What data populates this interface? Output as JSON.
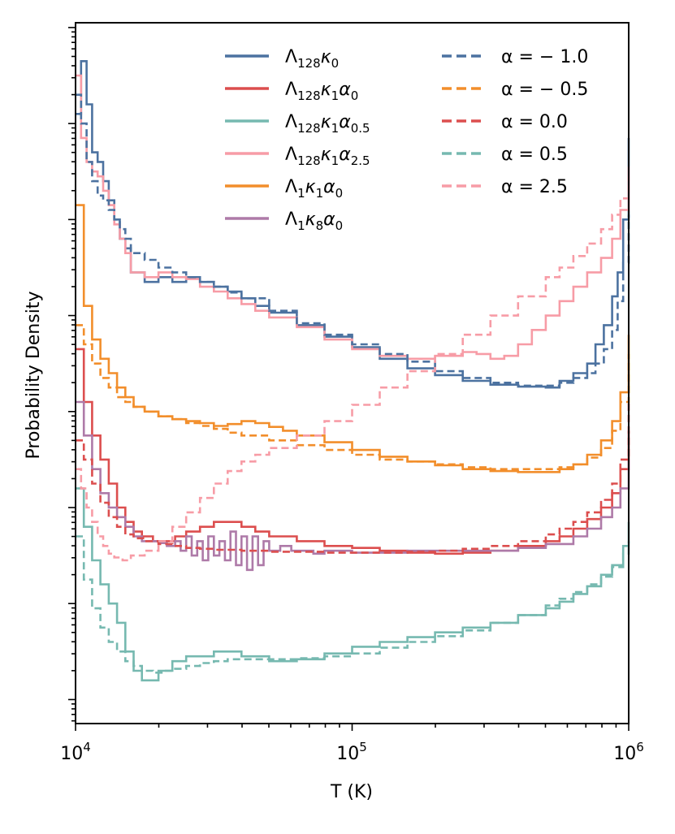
{
  "chart_data": {
    "type": "line",
    "xlabel": "T (K)",
    "ylabel": "Probability Density",
    "xscale": "log",
    "xlim": [
      10000,
      1000000
    ],
    "yscale": "log",
    "ylim": [
      -7.25,
      0.05
    ],
    "x_tick_labels": [
      {
        "value": 10000,
        "base": "10",
        "exp": "4"
      },
      {
        "value": 100000,
        "base": "10",
        "exp": "5"
      },
      {
        "value": 1000000,
        "base": "10",
        "exp": "6"
      }
    ],
    "legend_left": [
      {
        "name": "Λ",
        "sub1": "128",
        "mid": "κ",
        "sub2": "0",
        "mid2": "",
        "sub3": "",
        "color": "#4C72A0",
        "dashed": false
      },
      {
        "name": "Λ",
        "sub1": "128",
        "mid": "κ",
        "sub2": "1",
        "mid2": "α",
        "sub3": "0",
        "color": "#DC4E4E",
        "dashed": false
      },
      {
        "name": "Λ",
        "sub1": "128",
        "mid": "κ",
        "sub2": "1",
        "mid2": "α",
        "sub3": "0.5",
        "color": "#76B9B0",
        "dashed": false
      },
      {
        "name": "Λ",
        "sub1": "128",
        "mid": "κ",
        "sub2": "1",
        "mid2": "α",
        "sub3": "2.5",
        "color": "#F79CA6",
        "dashed": false
      },
      {
        "name": "Λ",
        "sub1": "1",
        "mid": "κ",
        "sub2": "1",
        "mid2": "α",
        "sub3": "0",
        "color": "#F28E2B",
        "dashed": false
      },
      {
        "name": "Λ",
        "sub1": "1",
        "mid": "κ",
        "sub2": "8",
        "mid2": "α",
        "sub3": "0",
        "color": "#AE7AA8",
        "dashed": false
      }
    ],
    "legend_right": [
      {
        "label": "α = − 1.0",
        "color": "#4C72A0",
        "dashed": true
      },
      {
        "label": "α = − 0.5",
        "color": "#F28E2B",
        "dashed": true
      },
      {
        "label": "α = 0.0",
        "color": "#DC4E4E",
        "dashed": true
      },
      {
        "label": "α = 0.5",
        "color": "#76B9B0",
        "dashed": true
      },
      {
        "label": "α = 2.5",
        "color": "#F79CA6",
        "dashed": true
      }
    ],
    "series": [
      {
        "name": "Λ128κ0",
        "color": "#4C72A0",
        "dashed": false,
        "step": true,
        "logT": [
          4.0,
          4.02,
          4.04,
          4.06,
          4.08,
          4.1,
          4.12,
          4.14,
          4.16,
          4.18,
          4.2,
          4.25,
          4.3,
          4.35,
          4.4,
          4.45,
          4.5,
          4.55,
          4.6,
          4.65,
          4.7,
          4.8,
          4.9,
          5.0,
          5.1,
          5.2,
          5.3,
          5.4,
          5.5,
          5.6,
          5.7,
          5.75,
          5.8,
          5.85,
          5.88,
          5.91,
          5.94,
          5.96,
          5.98,
          6.0
        ],
        "logP": [
          -0.9,
          -0.35,
          -0.8,
          -1.3,
          -1.4,
          -1.6,
          -1.8,
          -2.0,
          -2.2,
          -2.3,
          -2.55,
          -2.65,
          -2.6,
          -2.65,
          -2.6,
          -2.65,
          -2.7,
          -2.75,
          -2.82,
          -2.9,
          -2.97,
          -3.1,
          -3.22,
          -3.33,
          -3.45,
          -3.55,
          -3.62,
          -3.68,
          -3.72,
          -3.74,
          -3.75,
          -3.68,
          -3.6,
          -3.5,
          -3.3,
          -3.1,
          -2.8,
          -2.55,
          -2.0,
          -1.15
        ]
      },
      {
        "name": "Λ128κ1α0.5",
        "color": "#76B9B0",
        "dashed": false,
        "step": true,
        "logT": [
          4.0,
          4.03,
          4.06,
          4.09,
          4.12,
          4.15,
          4.18,
          4.21,
          4.24,
          4.27,
          4.3,
          4.35,
          4.4,
          4.45,
          4.5,
          4.55,
          4.6,
          4.65,
          4.7,
          4.8,
          4.9,
          5.0,
          5.1,
          5.2,
          5.3,
          5.4,
          5.5,
          5.6,
          5.7,
          5.75,
          5.8,
          5.85,
          5.9,
          5.94,
          5.98,
          6.0
        ],
        "logP": [
          -4.8,
          -5.2,
          -5.55,
          -5.8,
          -6.0,
          -6.2,
          -6.5,
          -6.7,
          -6.8,
          -6.8,
          -6.7,
          -6.6,
          -6.55,
          -6.55,
          -6.5,
          -6.5,
          -6.55,
          -6.55,
          -6.6,
          -6.58,
          -6.52,
          -6.45,
          -6.4,
          -6.35,
          -6.3,
          -6.25,
          -6.2,
          -6.12,
          -6.05,
          -5.98,
          -5.9,
          -5.82,
          -5.7,
          -5.6,
          -5.4,
          -5.15
        ]
      },
      {
        "name": "Λ1κ1α0",
        "color": "#F28E2B",
        "dashed": false,
        "step": true,
        "logT": [
          4.0,
          4.03,
          4.06,
          4.09,
          4.12,
          4.15,
          4.18,
          4.21,
          4.25,
          4.3,
          4.35,
          4.4,
          4.45,
          4.5,
          4.55,
          4.6,
          4.65,
          4.7,
          4.75,
          4.8,
          4.9,
          5.0,
          5.1,
          5.2,
          5.3,
          5.4,
          5.5,
          5.6,
          5.7,
          5.75,
          5.8,
          5.85,
          5.9,
          5.94,
          5.97,
          6.0
        ],
        "logP": [
          -1.85,
          -2.9,
          -3.25,
          -3.45,
          -3.6,
          -3.75,
          -3.85,
          -3.95,
          -4.0,
          -4.05,
          -4.08,
          -4.1,
          -4.12,
          -4.15,
          -4.13,
          -4.1,
          -4.12,
          -4.16,
          -4.2,
          -4.25,
          -4.32,
          -4.4,
          -4.47,
          -4.52,
          -4.56,
          -4.6,
          -4.62,
          -4.63,
          -4.63,
          -4.6,
          -4.55,
          -4.45,
          -4.3,
          -4.1,
          -3.8,
          -3.2
        ]
      },
      {
        "name": "Λ128κ1α0",
        "color": "#DC4E4E",
        "dashed": false,
        "step": true,
        "logT": [
          4.0,
          4.03,
          4.06,
          4.09,
          4.12,
          4.15,
          4.18,
          4.21,
          4.24,
          4.28,
          4.32,
          4.36,
          4.4,
          4.45,
          4.5,
          4.55,
          4.6,
          4.65,
          4.7,
          4.8,
          4.9,
          5.0,
          5.1,
          5.2,
          5.3,
          5.4,
          5.5,
          5.6,
          5.7,
          5.75,
          5.8,
          5.85,
          5.9,
          5.94,
          5.97,
          6.0
        ],
        "logP": [
          -3.35,
          -3.9,
          -4.25,
          -4.5,
          -4.75,
          -5.0,
          -5.15,
          -5.25,
          -5.3,
          -5.35,
          -5.35,
          -5.3,
          -5.25,
          -5.2,
          -5.15,
          -5.15,
          -5.2,
          -5.25,
          -5.3,
          -5.35,
          -5.4,
          -5.42,
          -5.45,
          -5.47,
          -5.48,
          -5.47,
          -5.45,
          -5.4,
          -5.35,
          -5.3,
          -5.22,
          -5.12,
          -5.0,
          -4.85,
          -4.6,
          -4.2
        ]
      },
      {
        "name": "Λ1κ8α0",
        "color": "#AE7AA8",
        "dashed": false,
        "step": true,
        "logT": [
          4.0,
          4.03,
          4.06,
          4.09,
          4.12,
          4.15,
          4.18,
          4.21,
          4.24,
          4.27,
          4.3,
          4.33,
          4.36,
          4.38,
          4.4,
          4.42,
          4.44,
          4.46,
          4.48,
          4.5,
          4.52,
          4.54,
          4.56,
          4.58,
          4.6,
          4.62,
          4.64,
          4.66,
          4.68,
          4.7,
          4.74,
          4.78,
          4.82,
          4.86,
          4.9,
          5.0,
          5.1,
          5.2,
          5.3,
          5.4,
          5.5,
          5.6,
          5.7,
          5.8,
          5.85,
          5.9,
          5.94,
          5.97,
          6.0
        ],
        "logP": [
          -3.9,
          -4.25,
          -4.6,
          -4.85,
          -5.0,
          -5.1,
          -5.2,
          -5.3,
          -5.35,
          -5.35,
          -5.37,
          -5.4,
          -5.35,
          -5.45,
          -5.3,
          -5.5,
          -5.35,
          -5.55,
          -5.3,
          -5.5,
          -5.35,
          -5.55,
          -5.25,
          -5.6,
          -5.3,
          -5.65,
          -5.3,
          -5.6,
          -5.35,
          -5.45,
          -5.4,
          -5.45,
          -5.45,
          -5.48,
          -5.45,
          -5.47,
          -5.47,
          -5.45,
          -5.45,
          -5.45,
          -5.45,
          -5.42,
          -5.38,
          -5.3,
          -5.22,
          -5.1,
          -5.0,
          -4.8,
          -4.5
        ]
      },
      {
        "name": "Λ128κ1α2.5",
        "color": "#F79CA6",
        "dashed": false,
        "step": true,
        "logT": [
          4.0,
          4.02,
          4.04,
          4.06,
          4.08,
          4.1,
          4.12,
          4.14,
          4.16,
          4.18,
          4.2,
          4.25,
          4.3,
          4.35,
          4.4,
          4.45,
          4.5,
          4.55,
          4.6,
          4.65,
          4.7,
          4.8,
          4.9,
          5.0,
          5.1,
          5.2,
          5.3,
          5.4,
          5.45,
          5.5,
          5.55,
          5.6,
          5.65,
          5.7,
          5.75,
          5.8,
          5.85,
          5.9,
          5.94,
          5.97,
          6.0
        ],
        "logP": [
          -0.5,
          -1.15,
          -1.4,
          -1.5,
          -1.55,
          -1.7,
          -1.85,
          -2.05,
          -2.2,
          -2.35,
          -2.55,
          -2.6,
          -2.55,
          -2.6,
          -2.62,
          -2.7,
          -2.75,
          -2.82,
          -2.88,
          -2.95,
          -3.02,
          -3.12,
          -3.25,
          -3.35,
          -3.42,
          -3.45,
          -3.42,
          -3.38,
          -3.4,
          -3.45,
          -3.42,
          -3.3,
          -3.15,
          -3.0,
          -2.85,
          -2.7,
          -2.55,
          -2.4,
          -2.2,
          -1.9,
          -1.45
        ]
      },
      {
        "name": "α = − 1.0",
        "color": "#4C72A0",
        "dashed": true,
        "step": true,
        "logT": [
          4.0,
          4.02,
          4.04,
          4.06,
          4.08,
          4.1,
          4.12,
          4.14,
          4.16,
          4.18,
          4.2,
          4.25,
          4.3,
          4.35,
          4.4,
          4.45,
          4.5,
          4.55,
          4.6,
          4.7,
          4.8,
          4.9,
          5.0,
          5.1,
          5.2,
          5.3,
          5.4,
          5.5,
          5.6,
          5.7,
          5.75,
          5.8,
          5.85,
          5.88,
          5.91,
          5.94,
          5.96,
          5.98,
          6.0
        ],
        "logP": [
          -0.7,
          -1.0,
          -1.4,
          -1.6,
          -1.75,
          -1.8,
          -1.9,
          -2.0,
          -2.1,
          -2.2,
          -2.35,
          -2.42,
          -2.5,
          -2.55,
          -2.6,
          -2.65,
          -2.7,
          -2.76,
          -2.82,
          -2.95,
          -3.08,
          -3.2,
          -3.3,
          -3.4,
          -3.48,
          -3.58,
          -3.65,
          -3.7,
          -3.73,
          -3.73,
          -3.7,
          -3.65,
          -3.6,
          -3.5,
          -3.35,
          -3.15,
          -2.85,
          -2.45,
          -1.95
        ]
      },
      {
        "name": "α = − 0.5",
        "color": "#F28E2B",
        "dashed": true,
        "step": true,
        "logT": [
          4.0,
          4.03,
          4.06,
          4.09,
          4.12,
          4.15,
          4.18,
          4.21,
          4.25,
          4.3,
          4.35,
          4.4,
          4.45,
          4.5,
          4.55,
          4.6,
          4.7,
          4.8,
          4.9,
          5.0,
          5.1,
          5.2,
          5.3,
          5.4,
          5.5,
          5.6,
          5.7,
          5.75,
          5.8,
          5.85,
          5.9,
          5.94,
          5.97,
          6.0
        ],
        "logP": [
          -3.1,
          -3.3,
          -3.5,
          -3.65,
          -3.75,
          -3.85,
          -3.9,
          -3.95,
          -4.0,
          -4.05,
          -4.08,
          -4.12,
          -4.15,
          -4.18,
          -4.22,
          -4.25,
          -4.3,
          -4.35,
          -4.4,
          -4.45,
          -4.5,
          -4.52,
          -4.55,
          -4.58,
          -4.6,
          -4.6,
          -4.6,
          -4.58,
          -4.55,
          -4.48,
          -4.38,
          -4.2,
          -3.9,
          -3.4
        ]
      },
      {
        "name": "α = 0.0",
        "color": "#DC4E4E",
        "dashed": true,
        "step": true,
        "logT": [
          4.0,
          4.03,
          4.06,
          4.09,
          4.12,
          4.15,
          4.18,
          4.21,
          4.25,
          4.3,
          4.35,
          4.4,
          4.45,
          4.5,
          4.6,
          4.7,
          4.8,
          4.9,
          5.0,
          5.1,
          5.2,
          5.3,
          5.4,
          5.5,
          5.6,
          5.7,
          5.75,
          5.8,
          5.85,
          5.9,
          5.94,
          5.97,
          6.0
        ],
        "logP": [
          -4.3,
          -4.5,
          -4.75,
          -4.95,
          -5.1,
          -5.2,
          -5.28,
          -5.32,
          -5.35,
          -5.38,
          -5.4,
          -5.42,
          -5.43,
          -5.44,
          -5.45,
          -5.46,
          -5.46,
          -5.47,
          -5.47,
          -5.47,
          -5.46,
          -5.45,
          -5.43,
          -5.4,
          -5.35,
          -5.28,
          -5.22,
          -5.15,
          -5.05,
          -4.92,
          -4.75,
          -4.5,
          -3.9
        ]
      },
      {
        "name": "α = 0.5",
        "color": "#76B9B0",
        "dashed": true,
        "step": true,
        "logT": [
          4.0,
          4.03,
          4.06,
          4.09,
          4.12,
          4.15,
          4.18,
          4.21,
          4.24,
          4.28,
          4.32,
          4.36,
          4.4,
          4.45,
          4.5,
          4.55,
          4.6,
          4.7,
          4.8,
          4.9,
          5.0,
          5.1,
          5.2,
          5.3,
          5.4,
          5.5,
          5.6,
          5.7,
          5.75,
          5.8,
          5.85,
          5.9,
          5.94,
          5.98,
          6.0
        ],
        "logP": [
          -5.3,
          -5.75,
          -6.05,
          -6.25,
          -6.4,
          -6.5,
          -6.6,
          -6.65,
          -6.7,
          -6.72,
          -6.7,
          -6.68,
          -6.65,
          -6.62,
          -6.6,
          -6.58,
          -6.58,
          -6.58,
          -6.57,
          -6.55,
          -6.52,
          -6.46,
          -6.4,
          -6.34,
          -6.28,
          -6.2,
          -6.12,
          -6.02,
          -5.95,
          -5.88,
          -5.8,
          -5.72,
          -5.62,
          -5.48,
          -5.35
        ]
      },
      {
        "name": "α = 2.5",
        "color": "#F79CA6",
        "dashed": true,
        "step": true,
        "logT": [
          4.0,
          4.02,
          4.04,
          4.06,
          4.08,
          4.1,
          4.12,
          4.14,
          4.17,
          4.2,
          4.25,
          4.3,
          4.35,
          4.4,
          4.45,
          4.5,
          4.55,
          4.6,
          4.65,
          4.7,
          4.8,
          4.9,
          5.0,
          5.1,
          5.2,
          5.3,
          5.4,
          5.5,
          5.6,
          5.7,
          5.75,
          5.8,
          5.85,
          5.9,
          5.94,
          5.97,
          6.0
        ],
        "logP": [
          -4.6,
          -4.8,
          -5.0,
          -5.15,
          -5.3,
          -5.4,
          -5.48,
          -5.52,
          -5.55,
          -5.5,
          -5.45,
          -5.35,
          -5.2,
          -5.05,
          -4.9,
          -4.75,
          -4.62,
          -4.52,
          -4.45,
          -4.38,
          -4.25,
          -4.1,
          -3.93,
          -3.75,
          -3.58,
          -3.4,
          -3.2,
          -3.0,
          -2.8,
          -2.6,
          -2.5,
          -2.38,
          -2.25,
          -2.1,
          -1.95,
          -1.78,
          -1.55
        ]
      }
    ]
  }
}
